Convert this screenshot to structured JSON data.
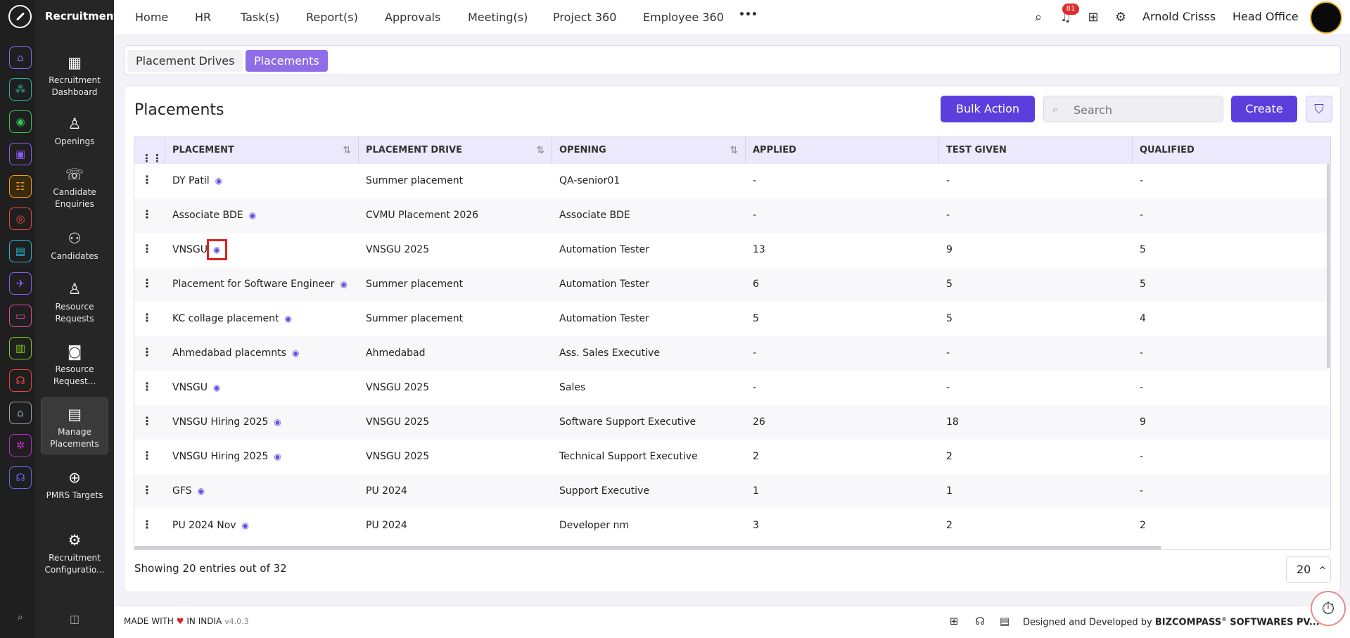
{
  "module": {
    "title": "Recruitment",
    "items": [
      {
        "label": "Recruitment Dashboard",
        "icon": "dashboard-icon"
      },
      {
        "label": "Openings",
        "icon": "openings-icon"
      },
      {
        "label": "Candidate Enquiries",
        "icon": "phone-icon"
      },
      {
        "label": "Candidates",
        "icon": "candidates-icon"
      },
      {
        "label": "Resource Requests",
        "icon": "resource-request-icon"
      },
      {
        "label": "Resource Request...",
        "icon": "resource-request-approval-icon"
      },
      {
        "label": "Manage Placements",
        "icon": "manage-placements-icon"
      },
      {
        "label": "PMRS Targets",
        "icon": "target-icon"
      },
      {
        "label": "Recruitment Configuratio...",
        "icon": "gear-icon"
      }
    ]
  },
  "nav": {
    "items": [
      "Home",
      "HR",
      "Task(s)",
      "Report(s)",
      "Approvals",
      "Meeting(s)",
      "Project 360",
      "Employee 360"
    ],
    "more": "•••",
    "notification_count": "81",
    "user": "Arnold Crisss",
    "branch": "Head Office"
  },
  "tabs": {
    "drives": "Placement Drives",
    "placements": "Placements"
  },
  "card": {
    "title": "Placements",
    "bulk_action": "Bulk Action",
    "search_placeholder": "Search",
    "create": "Create"
  },
  "table": {
    "columns": [
      "PLACEMENT",
      "PLACEMENT DRIVE",
      "OPENING",
      "APPLIED",
      "TEST GIVEN",
      "QUALIFIED"
    ],
    "rows": [
      {
        "placement": "DY Patil",
        "drive": "Summer placement",
        "opening": "QA-senior01",
        "applied": "-",
        "test_given": "-",
        "qualified": "-"
      },
      {
        "placement": "Associate BDE",
        "drive": "CVMU Placement 2026",
        "opening": "Associate BDE",
        "applied": "-",
        "test_given": "-",
        "qualified": "-"
      },
      {
        "placement": "VNSGU",
        "drive": "VNSGU 2025",
        "opening": "Automation Tester",
        "applied": "13",
        "test_given": "9",
        "qualified": "5"
      },
      {
        "placement": "Placement for Software Engineer",
        "drive": "Summer placement",
        "opening": "Automation Tester",
        "applied": "6",
        "test_given": "5",
        "qualified": "5"
      },
      {
        "placement": "KC collage placement",
        "drive": "Summer placement",
        "opening": "Automation Tester",
        "applied": "5",
        "test_given": "5",
        "qualified": "4"
      },
      {
        "placement": "Ahmedabad placemnts",
        "drive": "Ahmedabad",
        "opening": "Ass. Sales Executive",
        "applied": "-",
        "test_given": "-",
        "qualified": "-"
      },
      {
        "placement": "VNSGU",
        "drive": "VNSGU 2025",
        "opening": "Sales",
        "applied": "-",
        "test_given": "-",
        "qualified": "-"
      },
      {
        "placement": "VNSGU Hiring 2025",
        "drive": "VNSGU 2025",
        "opening": "Software Support Executive",
        "applied": "26",
        "test_given": "18",
        "qualified": "9"
      },
      {
        "placement": "VNSGU Hiring 2025",
        "drive": "VNSGU 2025",
        "opening": "Technical Support Executive",
        "applied": "2",
        "test_given": "2",
        "qualified": "-"
      },
      {
        "placement": "GFS",
        "drive": "PU 2024",
        "opening": "Support Executive",
        "applied": "1",
        "test_given": "1",
        "qualified": "-"
      },
      {
        "placement": "PU 2024 Nov",
        "drive": "PU 2024",
        "opening": "Developer nm",
        "applied": "3",
        "test_given": "2",
        "qualified": "2"
      }
    ],
    "highlighted_row": 2
  },
  "pagination": {
    "info": "Showing 20 entries out of 32",
    "page_size": "20"
  },
  "footer": {
    "made_prefix": "MADE WITH",
    "made_suffix": "IN INDIA",
    "version": "v4.0.3",
    "designed": "Designed and Developed by",
    "company": "BIZCOMPASS",
    "company_suffix": "SOFTWARES PV..."
  },
  "colors": {
    "accent": "#5a3fdc",
    "tab_active": "#8f6de8",
    "sidebar": "#262626"
  }
}
